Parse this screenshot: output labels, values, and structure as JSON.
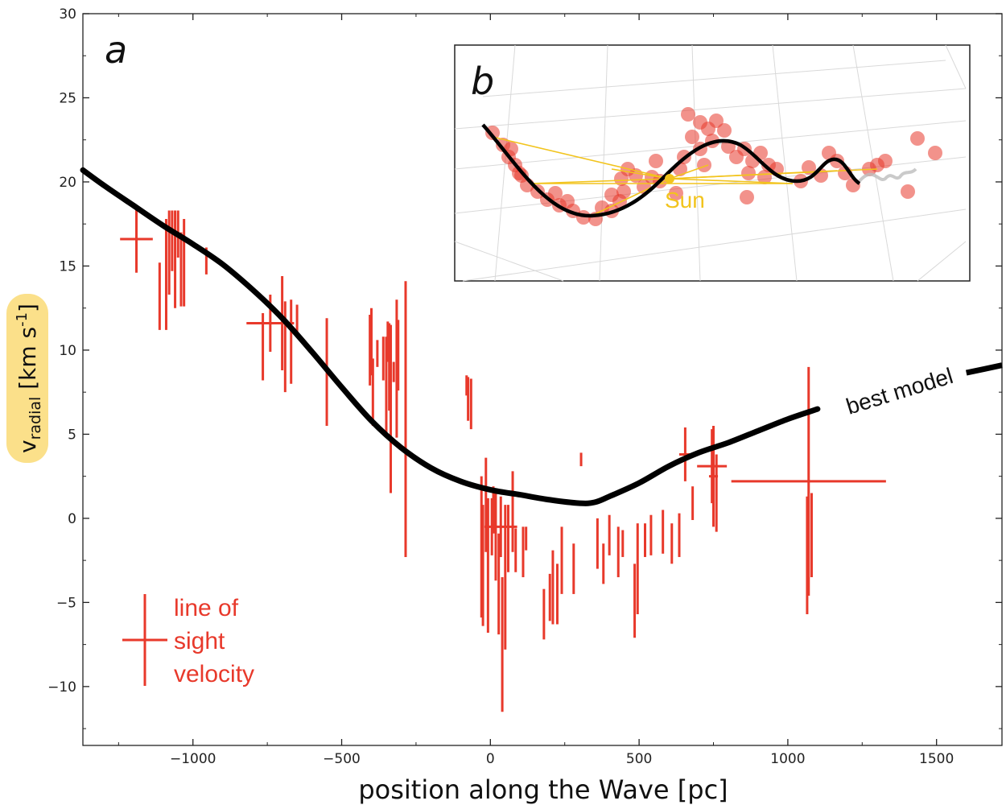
{
  "colors": {
    "errorbar": "#e8392b",
    "model": "#000000",
    "sun": "#f2c41d",
    "ylabel_highlight": "#fbe08a",
    "inset_points": "#e8392b",
    "inset_grid": "#d7d7d7"
  },
  "chart_data": [
    {
      "type": "scatter",
      "panel_label": "a",
      "xlabel": "position along the Wave [pc]",
      "ylabel_main": "v",
      "ylabel_sub": "radial",
      "ylabel_unit": " [km s",
      "ylabel_sup": "-1",
      "ylabel_close": "]",
      "xlim": [
        -1370,
        1720
      ],
      "ylim": [
        -13.5,
        30
      ],
      "xticks": [
        -1000,
        -500,
        0,
        500,
        1000,
        1500
      ],
      "xtick_labels": [
        "−1000",
        "−500",
        "0",
        "500",
        "1000",
        "1500"
      ],
      "yticks": [
        -10,
        -5,
        0,
        5,
        10,
        15,
        20,
        25,
        30
      ],
      "ytick_labels": [
        "−10",
        "−5",
        "0",
        "5",
        "10",
        "15",
        "20",
        "25",
        "30"
      ],
      "grid": false,
      "legend_lines": [
        "line of",
        "sight",
        "velocity"
      ],
      "model_label": "best model",
      "series": [
        {
          "name": "line of sight velocity",
          "points": [
            {
              "x": -1190,
              "y": 16.6,
              "xerr": 55,
              "yerr": 2.0
            },
            {
              "x": -1112,
              "y": 13.2,
              "yerr": 2.0
            },
            {
              "x": -1090,
              "y": 14.5,
              "yerr": 3.3
            },
            {
              "x": -1080,
              "y": 15.8,
              "yerr": 2.5
            },
            {
              "x": -1070,
              "y": 16.5,
              "yerr": 1.8
            },
            {
              "x": -1060,
              "y": 15.4,
              "yerr": 2.9
            },
            {
              "x": -1050,
              "y": 16.9,
              "yerr": 1.4
            },
            {
              "x": -1040,
              "y": 14.8,
              "yerr": 2.2
            },
            {
              "x": -1030,
              "y": 15.2,
              "yerr": 2.6
            },
            {
              "x": -955,
              "y": 15.3,
              "yerr": 0.8
            },
            {
              "x": -740,
              "y": 11.6,
              "xerr": 80,
              "yerr": 1.7
            },
            {
              "x": -765,
              "y": 10.2,
              "yerr": 2.0
            },
            {
              "x": -700,
              "y": 11.6,
              "xerr": 35,
              "yerr": 2.8
            },
            {
              "x": -690,
              "y": 10.2,
              "yerr": 2.7
            },
            {
              "x": -670,
              "y": 10.5,
              "yerr": 2.5
            },
            {
              "x": -650,
              "y": 11.9,
              "yerr": 0.8
            },
            {
              "x": -550,
              "y": 8.7,
              "yerr": 3.2
            },
            {
              "x": -405,
              "y": 10.0,
              "yerr": 2.1
            },
            {
              "x": -400,
              "y": 10.5,
              "yerr": 2.0
            },
            {
              "x": -395,
              "y": 7.5,
              "yerr": 2.0
            },
            {
              "x": -380,
              "y": 9.8,
              "yerr": 0.8
            },
            {
              "x": -360,
              "y": 9.5,
              "yerr": 1.3
            },
            {
              "x": -350,
              "y": 7.8,
              "yerr": 3.0
            },
            {
              "x": -345,
              "y": 10.5,
              "yerr": 1.2
            },
            {
              "x": -340,
              "y": 9.0,
              "yerr": 2.6
            },
            {
              "x": -335,
              "y": 6.5,
              "yerr": 5.0
            },
            {
              "x": -325,
              "y": 8.7,
              "yerr": 0.6
            },
            {
              "x": -315,
              "y": 8.9,
              "yerr": 4.1
            },
            {
              "x": -310,
              "y": 9.7,
              "yerr": 2.1
            },
            {
              "x": -285,
              "y": 5.9,
              "yerr": 8.2
            },
            {
              "x": -80,
              "y": 7.9,
              "yerr": 0.6
            },
            {
              "x": -75,
              "y": 7.1,
              "yerr": 1.3
            },
            {
              "x": -65,
              "y": 6.8,
              "yerr": 1.5
            },
            {
              "x": -30,
              "y": -1.7,
              "yerr": 4.2
            },
            {
              "x": -25,
              "y": -2.8,
              "yerr": 3.6
            },
            {
              "x": -15,
              "y": 0.8,
              "yerr": 2.8
            },
            {
              "x": -8,
              "y": -2.8,
              "yerr": 4.0
            },
            {
              "x": 5,
              "y": -0.5,
              "yerr": 1.7
            },
            {
              "x": 10,
              "y": 0.5,
              "yerr": 1.4
            },
            {
              "x": 18,
              "y": -1.0,
              "yerr": 2.7
            },
            {
              "x": 28,
              "y": -3.9,
              "yerr": 3.0
            },
            {
              "x": 35,
              "y": -0.5,
              "xerr": 55,
              "yerr": 1.8
            },
            {
              "x": 40,
              "y": -7.5,
              "yerr": 4.0
            },
            {
              "x": 50,
              "y": -3.5,
              "yerr": 4.3
            },
            {
              "x": 60,
              "y": -1.2,
              "yerr": 2.0
            },
            {
              "x": 75,
              "y": 0.4,
              "yerr": 2.4
            },
            {
              "x": 85,
              "y": -1.9,
              "yerr": 1.3
            },
            {
              "x": 110,
              "y": -2.0,
              "yerr": 1.5
            },
            {
              "x": 120,
              "y": -1.2,
              "yerr": 0.7
            },
            {
              "x": 180,
              "y": -5.7,
              "yerr": 1.5
            },
            {
              "x": 200,
              "y": -4.7,
              "yerr": 1.4
            },
            {
              "x": 210,
              "y": -4.1,
              "yerr": 2.2
            },
            {
              "x": 225,
              "y": -4.5,
              "yerr": 1.8
            },
            {
              "x": 240,
              "y": -2.5,
              "yerr": 2.0
            },
            {
              "x": 280,
              "y": -3.0,
              "yerr": 1.5
            },
            {
              "x": 305,
              "y": 3.5,
              "yerr": 0.4
            },
            {
              "x": 360,
              "y": -1.5,
              "yerr": 1.5
            },
            {
              "x": 380,
              "y": -2.7,
              "yerr": 1.2
            },
            {
              "x": 400,
              "y": -1.0,
              "yerr": 1.2
            },
            {
              "x": 430,
              "y": -2.0,
              "yerr": 1.5
            },
            {
              "x": 445,
              "y": -1.5,
              "yerr": 0.8
            },
            {
              "x": 485,
              "y": -4.9,
              "yerr": 2.2
            },
            {
              "x": 495,
              "y": -3.0,
              "yerr": 2.7
            },
            {
              "x": 520,
              "y": -1.3,
              "yerr": 1.0
            },
            {
              "x": 540,
              "y": -1.0,
              "yerr": 1.2
            },
            {
              "x": 580,
              "y": -0.8,
              "yerr": 1.3
            },
            {
              "x": 610,
              "y": -1.5,
              "yerr": 1.2
            },
            {
              "x": 635,
              "y": -1.0,
              "yerr": 1.3
            },
            {
              "x": 655,
              "y": 3.8,
              "xerr": 20,
              "yerr": 1.6
            },
            {
              "x": 680,
              "y": 0.9,
              "yerr": 1.0
            },
            {
              "x": 745,
              "y": 3.1,
              "xerr": 50,
              "yerr": 2.2
            },
            {
              "x": 750,
              "y": 2.5,
              "xerr": 15,
              "yerr": 3.0
            },
            {
              "x": 760,
              "y": 1.5,
              "yerr": 2.3
            },
            {
              "x": 1065,
              "y": -2.2,
              "yerr": 3.5
            },
            {
              "x": 1070,
              "y": 2.2,
              "xerr": 260,
              "yerr": 6.8
            },
            {
              "x": 1080,
              "y": -1.0,
              "yerr": 2.5
            }
          ]
        },
        {
          "name": "best model",
          "x": [
            -1370,
            -1300,
            -1200,
            -1100,
            -1000,
            -900,
            -800,
            -700,
            -600,
            -500,
            -400,
            -300,
            -200,
            -100,
            0,
            100,
            200,
            300,
            350,
            400,
            500,
            600,
            700,
            800,
            900,
            1000,
            1100,
            1200,
            1300,
            1400,
            1500,
            1600,
            1720
          ],
          "y": [
            20.7,
            19.8,
            18.6,
            17.4,
            16.3,
            15.1,
            13.6,
            11.9,
            9.9,
            7.8,
            5.8,
            4.2,
            3.0,
            2.2,
            1.7,
            1.4,
            1.1,
            0.9,
            0.95,
            1.3,
            2.1,
            3.1,
            3.9,
            4.5,
            5.2,
            5.9,
            6.5,
            6.95,
            7.4,
            7.85,
            8.3,
            8.65,
            9.1
          ]
        }
      ]
    },
    {
      "type": "scatter",
      "panel_label": "b",
      "annotation": "Sun",
      "description_free": true
    }
  ]
}
